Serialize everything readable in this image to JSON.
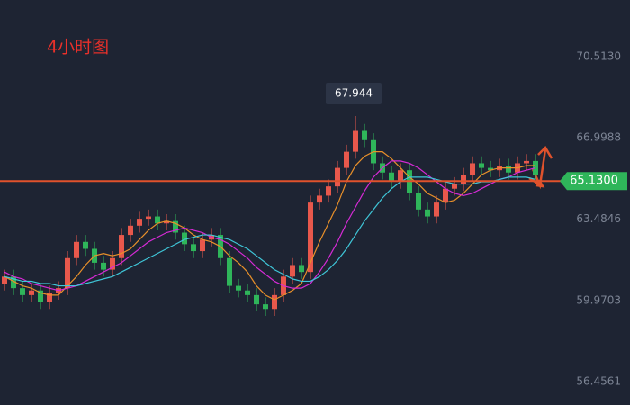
{
  "chart_data": {
    "type": "candlestick",
    "title": "4小时图",
    "ylim": [
      55.444,
      72.966
    ],
    "yticks": [
      {
        "value": 56.4561,
        "label": "56.4561"
      },
      {
        "value": 59.9703,
        "label": "59.9703"
      },
      {
        "value": 63.4846,
        "label": "63.4846"
      },
      {
        "value": 66.9988,
        "label": "66.9988"
      },
      {
        "value": 70.513,
        "label": "70.5130"
      }
    ],
    "up_color": "#e8584c",
    "down_color": "#2fb55a",
    "open": [
      60.7,
      61.0,
      60.5,
      60.2,
      60.4,
      59.9,
      60.3,
      60.5,
      61.8,
      62.5,
      62.2,
      61.6,
      61.3,
      61.8,
      62.8,
      63.2,
      63.5,
      63.6,
      63.3,
      63.4,
      62.9,
      62.4,
      62.1,
      62.6,
      62.8,
      61.8,
      60.6,
      60.4,
      60.2,
      59.8,
      59.6,
      60.2,
      61.0,
      61.5,
      61.2,
      64.2,
      64.5,
      64.9,
      65.7,
      66.4,
      67.3,
      66.9,
      65.9,
      65.5,
      65.1,
      65.6,
      64.6,
      63.9,
      63.6,
      64.2,
      64.8,
      65.0,
      65.4,
      65.9,
      65.7,
      65.6,
      65.8,
      65.5,
      65.9,
      66.0
    ],
    "high": [
      61.3,
      61.3,
      60.8,
      60.7,
      60.7,
      60.6,
      60.8,
      62.1,
      62.8,
      62.8,
      62.5,
      61.9,
      62.1,
      63.1,
      63.5,
      63.8,
      63.9,
      63.9,
      63.7,
      63.7,
      63.2,
      62.7,
      62.9,
      63.1,
      63.1,
      62.1,
      60.9,
      60.7,
      60.5,
      60.1,
      60.5,
      61.3,
      61.8,
      61.8,
      64.5,
      64.8,
      65.2,
      66.0,
      66.7,
      67.944,
      67.6,
      67.2,
      66.2,
      65.8,
      65.9,
      65.9,
      64.9,
      64.2,
      64.5,
      65.1,
      65.3,
      65.7,
      66.2,
      66.2,
      66.0,
      66.1,
      66.1,
      66.2,
      66.3,
      66.3
    ],
    "low": [
      60.4,
      60.2,
      59.9,
      59.9,
      59.6,
      59.6,
      60.0,
      60.2,
      61.5,
      61.9,
      61.3,
      61.0,
      61.0,
      61.5,
      62.5,
      62.9,
      63.2,
      63.0,
      63.0,
      62.6,
      62.1,
      61.8,
      61.8,
      62.3,
      61.5,
      60.3,
      60.1,
      59.9,
      59.5,
      59.3,
      59.3,
      59.9,
      60.7,
      60.9,
      60.9,
      63.9,
      64.2,
      64.6,
      65.4,
      66.1,
      66.6,
      65.6,
      65.2,
      64.8,
      64.8,
      64.3,
      63.6,
      63.3,
      63.3,
      63.9,
      64.5,
      64.7,
      65.1,
      65.4,
      65.3,
      65.3,
      65.2,
      65.2,
      65.6,
      65.1
    ],
    "close": [
      61.0,
      60.5,
      60.2,
      60.4,
      59.9,
      60.3,
      60.5,
      61.8,
      62.5,
      62.2,
      61.6,
      61.3,
      61.8,
      62.8,
      63.2,
      63.5,
      63.6,
      63.3,
      63.4,
      62.9,
      62.4,
      62.1,
      62.6,
      62.8,
      61.8,
      60.6,
      60.4,
      60.2,
      59.8,
      59.6,
      60.2,
      61.0,
      61.5,
      61.2,
      64.2,
      64.5,
      64.9,
      65.7,
      66.4,
      67.3,
      66.9,
      65.9,
      65.5,
      65.1,
      65.6,
      64.6,
      63.9,
      63.6,
      64.2,
      64.8,
      65.0,
      65.4,
      65.9,
      65.7,
      65.6,
      65.8,
      65.5,
      65.9,
      66.0,
      65.4
    ],
    "series": [
      {
        "color": "#e8902a",
        "values": [
          61.0,
          60.8,
          60.6,
          60.5,
          60.3,
          60.2,
          60.2,
          60.6,
          61.0,
          61.5,
          61.9,
          62.0,
          61.9,
          62.0,
          62.2,
          62.6,
          63.0,
          63.3,
          63.4,
          63.3,
          63.1,
          62.8,
          62.6,
          62.5,
          62.3,
          61.9,
          61.6,
          61.2,
          60.6,
          60.2,
          60.0,
          60.2,
          60.4,
          60.7,
          61.6,
          62.5,
          63.3,
          64.1,
          65.1,
          65.8,
          66.2,
          66.4,
          66.4,
          66.1,
          65.7,
          65.3,
          65.0,
          64.6,
          64.4,
          64.2,
          64.3,
          64.6,
          65.0,
          65.4,
          65.6,
          65.7,
          65.7,
          65.7,
          65.8,
          65.8
        ]
      },
      {
        "color": "#d62ad6",
        "values": [
          61.2,
          61.0,
          60.9,
          60.7,
          60.6,
          60.5,
          60.4,
          60.5,
          60.6,
          60.8,
          61.0,
          61.2,
          61.4,
          61.6,
          61.9,
          62.2,
          62.5,
          62.7,
          62.9,
          63.0,
          63.1,
          63.0,
          62.9,
          62.7,
          62.6,
          62.4,
          62.1,
          61.8,
          61.4,
          61.1,
          60.8,
          60.6,
          60.5,
          60.5,
          60.7,
          61.2,
          61.8,
          62.5,
          63.3,
          64.0,
          64.7,
          65.3,
          65.7,
          66.0,
          66.0,
          65.9,
          65.7,
          65.4,
          65.1,
          64.8,
          64.6,
          64.5,
          64.6,
          64.8,
          65.0,
          65.2,
          65.3,
          65.5,
          65.6,
          65.7
        ]
      },
      {
        "color": "#3fc6d8",
        "values": [
          61.0,
          60.9,
          60.8,
          60.8,
          60.7,
          60.7,
          60.6,
          60.6,
          60.6,
          60.7,
          60.8,
          60.9,
          61.0,
          61.2,
          61.4,
          61.6,
          61.8,
          62.0,
          62.2,
          62.4,
          62.6,
          62.7,
          62.8,
          62.8,
          62.7,
          62.6,
          62.4,
          62.2,
          61.9,
          61.6,
          61.3,
          61.1,
          60.9,
          60.8,
          60.8,
          61.0,
          61.3,
          61.7,
          62.2,
          62.8,
          63.4,
          63.9,
          64.4,
          64.8,
          65.1,
          65.3,
          65.3,
          65.3,
          65.2,
          65.1,
          65.0,
          65.0,
          65.0,
          65.1,
          65.1,
          65.2,
          65.3,
          65.3,
          65.3,
          65.2
        ]
      }
    ],
    "price_line": {
      "value": 65.13,
      "label": "65.1300",
      "color": "#e0522c"
    },
    "tag_color": "#2fb55a"
  }
}
